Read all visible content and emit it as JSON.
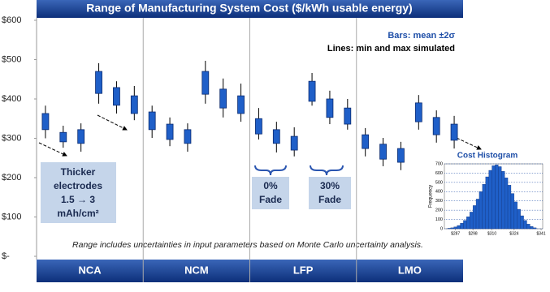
{
  "chart_data": [
    {
      "type": "range",
      "title": "Range of Manufacturing System Cost ($/kWh usable energy)",
      "legend": [
        "Bars: mean ±2σ",
        "Lines: min and max simulated"
      ],
      "groups": [
        "NCA",
        "NCM",
        "LFP",
        "LMO"
      ],
      "categories": [
        null,
        null,
        null,
        null,
        null,
        null,
        null,
        null,
        null,
        null,
        null,
        null,
        null,
        null,
        null,
        null,
        null,
        null,
        null,
        null,
        null,
        null,
        null,
        null
      ],
      "min": [
        300,
        276,
        266,
        388,
        363,
        346,
        301,
        280,
        266,
        388,
        353,
        342,
        297,
        264,
        254,
        383,
        336,
        322,
        254,
        229,
        219,
        322,
        289,
        274
      ],
      "low": [
        322,
        291,
        287,
        414,
        384,
        363,
        322,
        297,
        287,
        412,
        377,
        363,
        311,
        287,
        270,
        394,
        353,
        336,
        274,
        247,
        239,
        342,
        309,
        295
      ],
      "high": [
        363,
        315,
        322,
        470,
        429,
        408,
        367,
        336,
        322,
        470,
        425,
        408,
        350,
        322,
        305,
        445,
        400,
        377,
        309,
        285,
        274,
        390,
        353,
        336
      ],
      "max": [
        383,
        332,
        338,
        491,
        445,
        433,
        383,
        353,
        338,
        497,
        452,
        439,
        377,
        342,
        328,
        466,
        421,
        400,
        326,
        301,
        291,
        410,
        371,
        357
      ],
      "color": "#1f5fc8",
      "ylim": [
        0,
        600
      ],
      "yticks": [
        {
          "value": 0,
          "label": "$-"
        },
        {
          "value": 100,
          "label": "$100"
        },
        {
          "value": 200,
          "label": "$200"
        },
        {
          "value": 300,
          "label": "$300"
        },
        {
          "value": 400,
          "label": "$400"
        },
        {
          "value": 500,
          "label": "$500"
        },
        {
          "value": 600,
          "label": "$600"
        }
      ],
      "annotations": {
        "electrodes": [
          "Thicker",
          "electrodes",
          "1.5 → 3",
          "mAh/cm²"
        ],
        "fade0": [
          "0%",
          "Fade"
        ],
        "fade30": [
          "30%",
          "Fade"
        ],
        "note": "Range includes uncertainties in input parameters based on Monte Carlo uncertainty analysis."
      }
    },
    {
      "type": "histogram",
      "title": "Cost Histogram",
      "y_label": "Frequency",
      "bins": [
        282,
        284,
        286,
        288,
        290,
        292,
        294,
        296,
        298,
        300,
        302,
        304,
        306,
        308,
        310,
        312,
        314,
        316,
        318,
        320,
        322,
        324,
        326,
        328,
        330,
        332,
        334,
        336,
        338
      ],
      "values": [
        5,
        10,
        20,
        35,
        60,
        90,
        130,
        180,
        250,
        320,
        400,
        480,
        560,
        630,
        680,
        690,
        670,
        620,
        550,
        470,
        380,
        290,
        210,
        140,
        90,
        50,
        25,
        10
      ],
      "color": "#1f5fc8",
      "xlim": [
        280,
        342
      ],
      "xticks": [
        {
          "value": 287,
          "label": "$287"
        },
        {
          "value": 298,
          "label": "$298"
        },
        {
          "value": 310,
          "label": "$310"
        },
        {
          "value": 324,
          "label": "$324"
        },
        {
          "value": 341,
          "label": "$341"
        }
      ],
      "ylim": [
        0,
        700
      ],
      "yticks": [
        0,
        100,
        200,
        300,
        400,
        500,
        600,
        700
      ],
      "grid": true
    }
  ]
}
